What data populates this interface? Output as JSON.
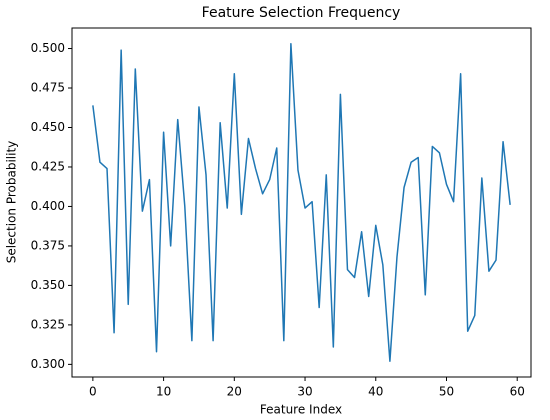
{
  "chart_data": {
    "type": "line",
    "title": "Feature Selection Frequency",
    "x_label": "Feature Index",
    "y_label": "Selection Probability",
    "x": [
      0,
      1,
      2,
      3,
      4,
      5,
      6,
      7,
      8,
      9,
      10,
      11,
      12,
      13,
      14,
      15,
      16,
      17,
      18,
      19,
      20,
      21,
      22,
      23,
      24,
      25,
      26,
      27,
      28,
      29,
      30,
      31,
      32,
      33,
      34,
      35,
      36,
      37,
      38,
      39,
      40,
      41,
      42,
      43,
      44,
      45,
      46,
      47,
      48,
      49,
      50,
      51,
      52,
      53,
      54,
      55,
      56,
      57,
      58,
      59
    ],
    "series": [
      {
        "color": "#1f77b4",
        "values": [
          0.464,
          0.428,
          0.424,
          0.32,
          0.499,
          0.338,
          0.487,
          0.397,
          0.417,
          0.308,
          0.447,
          0.375,
          0.455,
          0.4,
          0.315,
          0.463,
          0.42,
          0.315,
          0.453,
          0.399,
          0.484,
          0.395,
          0.443,
          0.424,
          0.408,
          0.417,
          0.437,
          0.315,
          0.503,
          0.423,
          0.399,
          0.403,
          0.336,
          0.42,
          0.311,
          0.471,
          0.36,
          0.355,
          0.384,
          0.343,
          0.388,
          0.363,
          0.302,
          0.368,
          0.412,
          0.428,
          0.431,
          0.344,
          0.438,
          0.434,
          0.414,
          0.403,
          0.484,
          0.321,
          0.331,
          0.418,
          0.359,
          0.366,
          0.441,
          0.401
        ]
      }
    ],
    "xlim": [
      -2.95,
      61.95
    ],
    "xticks": [
      0,
      10,
      20,
      30,
      40,
      50,
      60
    ],
    "ylim": [
      0.292,
      0.513
    ],
    "yticks": [
      {
        "value": 0.3,
        "label": "0.300"
      },
      {
        "value": 0.325,
        "label": "0.325"
      },
      {
        "value": 0.35,
        "label": "0.350"
      },
      {
        "value": 0.375,
        "label": "0.375"
      },
      {
        "value": 0.4,
        "label": "0.400"
      },
      {
        "value": 0.425,
        "label": "0.425"
      },
      {
        "value": 0.45,
        "label": "0.450"
      },
      {
        "value": 0.475,
        "label": "0.475"
      },
      {
        "value": 0.5,
        "label": "0.500"
      }
    ]
  }
}
